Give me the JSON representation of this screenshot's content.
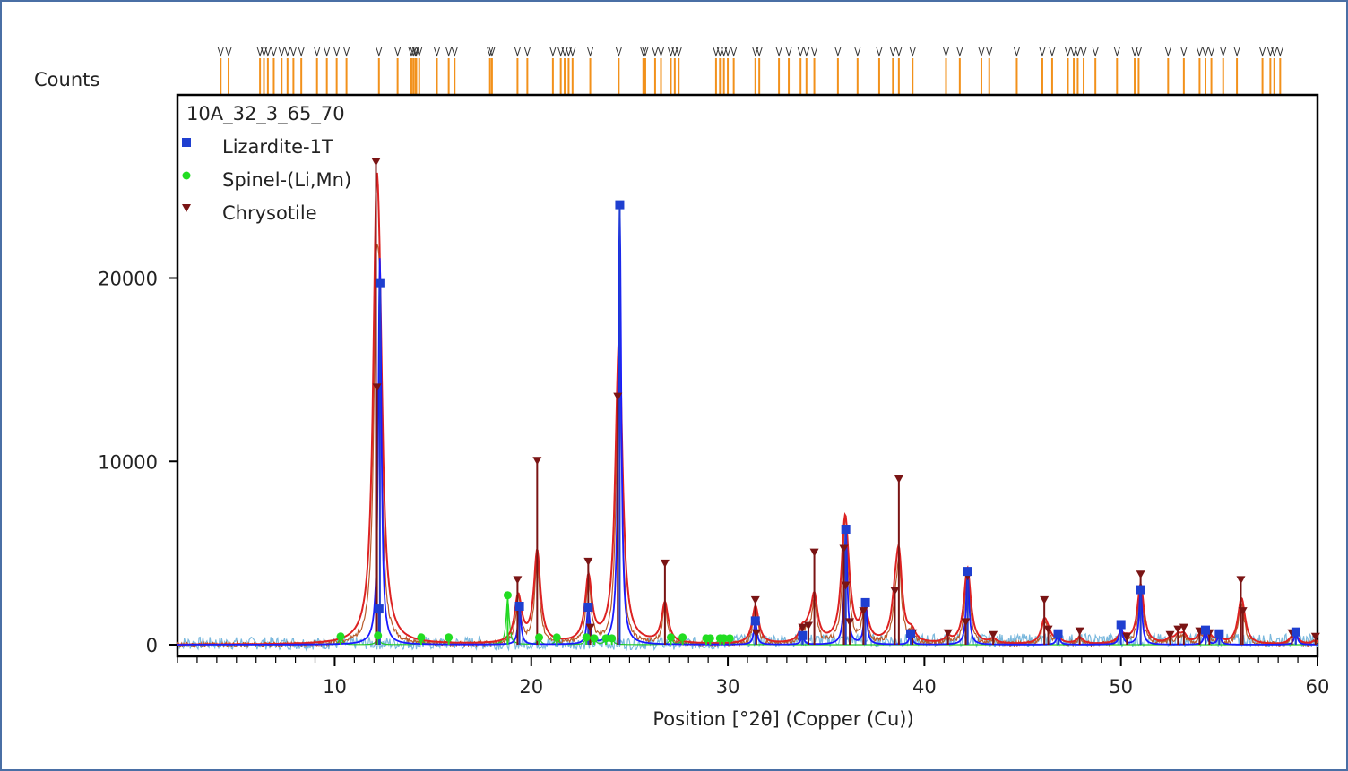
{
  "chart_data": {
    "type": "line",
    "title": "",
    "xlabel": "Position [°2θ] (Copper (Cu))",
    "ylabel": "Counts",
    "xlim": [
      2,
      60
    ],
    "ylim": [
      0,
      29500
    ],
    "x_ticks": [
      10,
      20,
      30,
      40,
      50,
      60
    ],
    "y_ticks": [
      0,
      10000,
      20000
    ],
    "grid": false,
    "legend_position": "top-left",
    "colors": {
      "frame": "#4a6fa5",
      "axes": "#000000",
      "observed": "#b85a2a",
      "difference": "#7ab8dd",
      "fit_red": "#dd2222",
      "fit_blue": "#1a1aff",
      "fit_green": "#22cc22",
      "reference_ticks": "#f2911b",
      "lizardite": "#1f3fd0",
      "spinel": "#22dd22",
      "chrysotile": "#7a1414"
    },
    "legend": [
      {
        "name": "10A_32_3_65_70",
        "marker": "none"
      },
      {
        "name": "Lizardite-1T",
        "marker": "square",
        "color": "#1f3fd0"
      },
      {
        "name": "Spinel-(Li,Mn)",
        "marker": "circle",
        "color": "#22dd22"
      },
      {
        "name": "Chrysotile",
        "marker": "triangle-down",
        "color": "#7a1414"
      }
    ],
    "series": [
      {
        "phase": "Lizardite-1T",
        "marker": "square",
        "x": [
          12.3,
          12.25,
          19.4,
          22.9,
          24.5,
          31.4,
          33.8,
          36.0,
          37.0,
          39.3,
          42.2,
          46.8,
          50.0,
          51.0,
          54.3,
          55.0,
          58.9
        ],
        "y": [
          19700,
          1950,
          2100,
          2050,
          24000,
          1300,
          500,
          6300,
          2300,
          600,
          4000,
          600,
          1100,
          3000,
          800,
          600,
          700
        ]
      },
      {
        "phase": "Spinel-(Li,Mn)",
        "marker": "circle",
        "x": [
          10.3,
          12.2,
          14.4,
          15.8,
          18.8,
          20.4,
          21.3,
          22.8,
          23.2,
          23.8,
          24.1,
          27.1,
          27.7,
          28.9,
          29.1,
          29.6,
          29.8,
          30.1
        ],
        "y": [
          450,
          500,
          400,
          400,
          2700,
          400,
          400,
          400,
          350,
          350,
          350,
          400,
          400,
          350,
          350,
          350,
          350,
          350
        ]
      },
      {
        "phase": "Chrysotile",
        "marker": "triangle-down",
        "x": [
          12.1,
          12.15,
          19.3,
          20.3,
          22.9,
          23.0,
          24.4,
          26.8,
          31.4,
          31.45,
          33.8,
          34.1,
          34.4,
          35.9,
          36.0,
          36.2,
          36.9,
          38.5,
          38.7,
          39.4,
          41.2,
          42.1,
          42.2,
          43.5,
          46.1,
          46.3,
          47.9,
          50.3,
          51.0,
          52.5,
          52.9,
          53.2,
          54.0,
          54.5,
          56.1,
          56.2,
          58.7,
          59.9
        ],
        "y": [
          26300,
          14000,
          3500,
          10000,
          4500,
          900,
          13500,
          4400,
          2400,
          600,
          900,
          1000,
          5000,
          5200,
          3200,
          1200,
          1800,
          2900,
          9000,
          600,
          600,
          1200,
          3700,
          500,
          2400,
          800,
          700,
          400,
          3800,
          500,
          800,
          900,
          700,
          600,
          3500,
          1800,
          600,
          400
        ]
      }
    ],
    "reference_peaks_deg2theta": [
      4.2,
      4.6,
      6.2,
      6.4,
      6.6,
      6.9,
      7.3,
      7.6,
      7.9,
      8.3,
      9.1,
      9.6,
      10.1,
      10.6,
      12.25,
      13.2,
      13.9,
      14.0,
      14.1,
      14.15,
      14.3,
      15.2,
      15.8,
      16.1,
      17.9,
      18.0,
      19.3,
      19.8,
      21.1,
      21.5,
      21.7,
      21.9,
      22.1,
      23.0,
      24.45,
      25.7,
      25.8,
      26.3,
      26.6,
      27.1,
      27.3,
      27.5,
      29.4,
      29.6,
      29.8,
      30.0,
      30.3,
      31.4,
      31.6,
      32.6,
      33.1,
      33.7,
      34.0,
      34.4,
      35.6,
      36.6,
      37.7,
      38.4,
      38.7,
      39.4,
      41.1,
      41.8,
      42.9,
      43.3,
      44.7,
      46.0,
      46.5,
      47.3,
      47.6,
      47.8,
      48.1,
      48.7,
      49.8,
      50.7,
      50.9,
      52.4,
      53.2,
      54.0,
      54.3,
      54.6,
      55.2,
      55.9,
      57.2,
      57.6,
      57.8,
      58.1
    ]
  }
}
